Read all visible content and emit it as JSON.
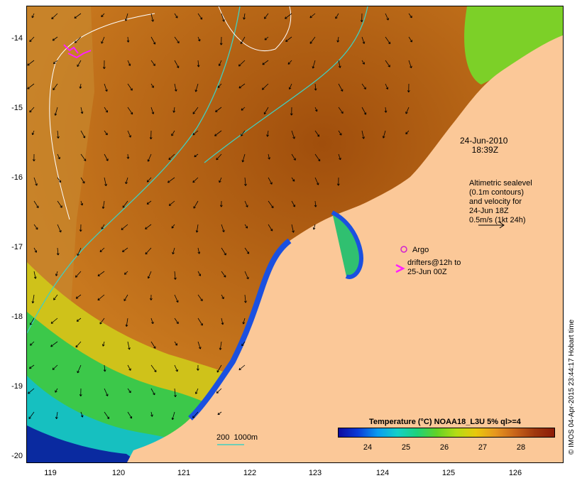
{
  "map": {
    "y_ticks": [
      "-14",
      "-15",
      "-16",
      "-17",
      "-18",
      "-19",
      "-20"
    ],
    "x_ticks": [
      "119",
      "120",
      "121",
      "122",
      "123",
      "124",
      "125",
      "126"
    ],
    "datetime": "24-Jun-2010\n     18:39Z",
    "sealevel_note": "Altimetric sealevel\n(0.1m contours)\nand velocity for\n24-Jun 18Z\n0.5m/s (1kt 24h)",
    "argo_label": "Argo",
    "drifters_label": "drifters@12h to\n25-Jun 00Z",
    "isobath_label": "200  1000m",
    "colorbar": {
      "title": "Temperature (°C) NOAA18_L3U 5% ql>=4",
      "ticks": [
        "24",
        "25",
        "26",
        "27",
        "28"
      ]
    },
    "credit": "© IMOS 04-Apr-2015 23:44:17 Hobart time",
    "colors": {
      "land": "#fbc898",
      "warm_water": "#c8741e",
      "cool_water": "#4ad040",
      "coast_blue": "#0a2aa0",
      "argo": "#d020d0",
      "drifter": "#ff20ff",
      "isobath": "#40d0c0"
    }
  }
}
